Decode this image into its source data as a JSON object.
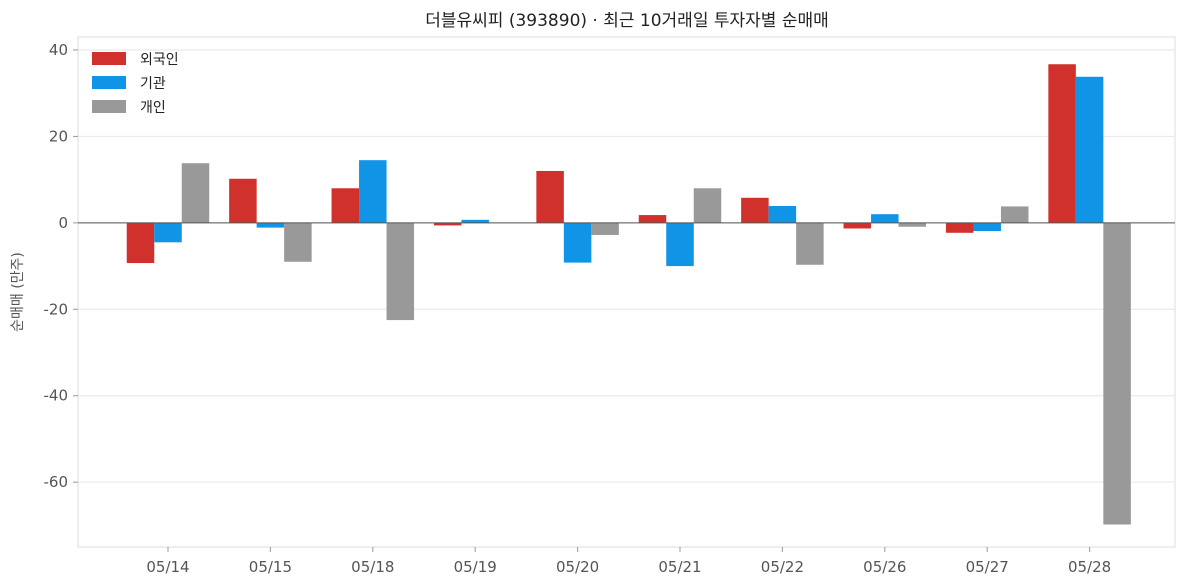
{
  "chart_data": {
    "type": "bar",
    "title": "더블유씨피 (393890) · 최근 10거래일 투자자별 순매매",
    "xlabel": "",
    "ylabel": "순매매 (만주)",
    "categories": [
      "05/14",
      "05/15",
      "05/18",
      "05/19",
      "05/20",
      "05/21",
      "05/22",
      "05/26",
      "05/27",
      "05/28"
    ],
    "series": [
      {
        "name": "외국인",
        "color": "#d0312d",
        "values": [
          -9.3,
          10.2,
          8.0,
          -0.6,
          12.0,
          1.8,
          5.8,
          -1.3,
          -2.3,
          36.7
        ]
      },
      {
        "name": "기관",
        "color": "#0f94e6",
        "values": [
          -4.5,
          -1.1,
          14.5,
          0.7,
          -9.2,
          -10.0,
          3.9,
          2.0,
          -1.9,
          33.8
        ]
      },
      {
        "name": "개인",
        "color": "#999999",
        "values": [
          13.8,
          -9.0,
          -22.5,
          0.0,
          -2.8,
          8.0,
          -9.7,
          -0.9,
          3.8,
          -69.8
        ]
      }
    ],
    "ylim": [
      -75,
      43
    ],
    "yticks": [
      40,
      20,
      0,
      -20,
      -40,
      -60
    ],
    "grid": true,
    "legend": "top-left"
  }
}
